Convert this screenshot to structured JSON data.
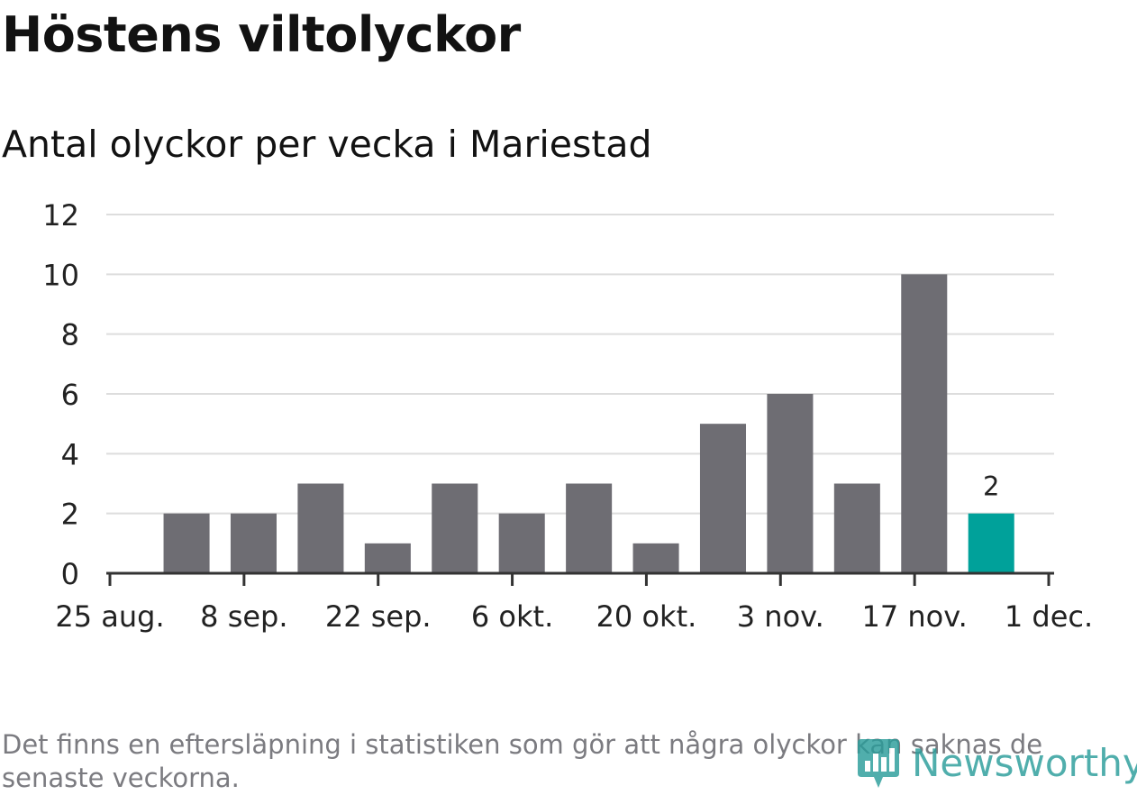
{
  "chart_data": {
    "type": "bar",
    "title": "Höstens viltolyckor",
    "subtitle": "Antal olyckor per vecka i Mariestad",
    "weeks": [
      "2024-09-02",
      "2024-09-09",
      "2024-09-16",
      "2024-09-23",
      "2024-09-30",
      "2024-10-07",
      "2024-10-14",
      "2024-10-21",
      "2024-10-28",
      "2024-11-04",
      "2024-11-11",
      "2024-11-18",
      "2024-11-25"
    ],
    "values": [
      2,
      2,
      3,
      1,
      3,
      2,
      3,
      1,
      5,
      6,
      3,
      10,
      2
    ],
    "highlight_index": 12,
    "highlight_label": "2",
    "ylim": [
      0,
      12
    ],
    "yticks": [
      "0",
      "2",
      "4",
      "6",
      "8",
      "10",
      "12"
    ],
    "xticks": [
      {
        "date": "2024-08-25",
        "label": "25 aug."
      },
      {
        "date": "2024-09-08",
        "label": "8 sep."
      },
      {
        "date": "2024-09-22",
        "label": "22 sep."
      },
      {
        "date": "2024-10-06",
        "label": "6 okt."
      },
      {
        "date": "2024-10-20",
        "label": "20 okt."
      },
      {
        "date": "2024-11-03",
        "label": "3 nov."
      },
      {
        "date": "2024-11-17",
        "label": "17 nov."
      },
      {
        "date": "2024-12-01",
        "label": "1 dec."
      }
    ],
    "xlim": [
      "2024-08-25",
      "2024-12-01"
    ],
    "grid": true,
    "colors": {
      "bar": "#6e6d73",
      "highlight": "#00a19a",
      "grid": "#dddddd",
      "axis": "#333333"
    }
  },
  "footnote": "Det finns en eftersläpning i statistiken som gör att några olyckor kan saknas de senaste veckorna.",
  "brand": {
    "name": "Newsworthy",
    "icon": "newsworthy-logo-icon",
    "color": "#2a9d9a"
  }
}
